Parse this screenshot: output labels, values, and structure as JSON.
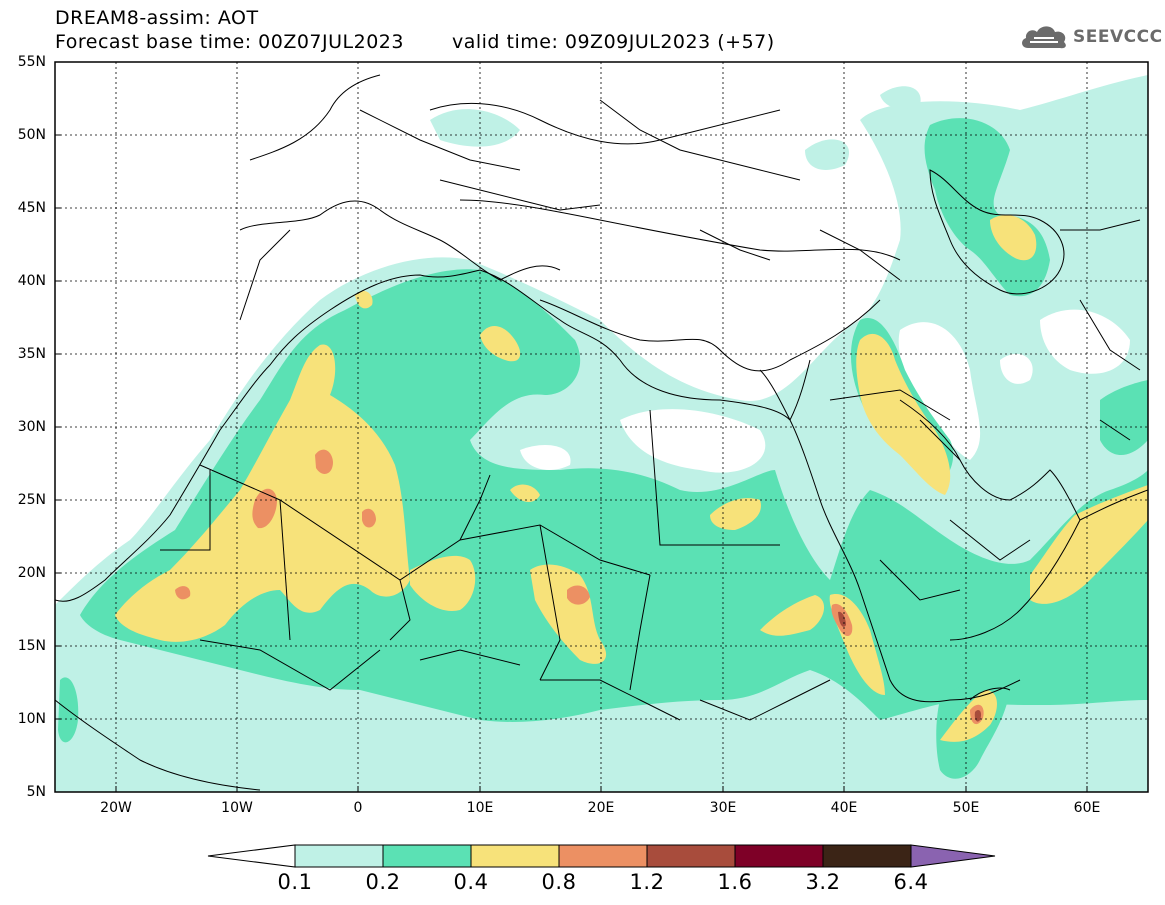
{
  "header": {
    "title_line1": "DREAM8-assim: AOT",
    "base_time_text": "Forecast base time: 00Z07JUL2023",
    "valid_time_text": "valid time: 09Z09JUL2023 (+57)"
  },
  "logo": {
    "text": "SEEVCCC",
    "icon": "cloud-icon"
  },
  "map": {
    "lat_range": [
      5,
      55
    ],
    "lon_range": [
      -25,
      65
    ],
    "lat_labels": [
      "55N",
      "50N",
      "45N",
      "40N",
      "35N",
      "30N",
      "25N",
      "20N",
      "15N",
      "10N",
      "5N"
    ],
    "lon_labels": [
      "20W",
      "10W",
      "0",
      "10E",
      "20E",
      "30E",
      "40E",
      "50E",
      "60E"
    ],
    "lon_values": [
      -20,
      -10,
      0,
      10,
      20,
      30,
      40,
      50,
      60
    ],
    "lat_values": [
      55,
      50,
      45,
      40,
      35,
      30,
      25,
      20,
      15,
      10,
      5
    ]
  },
  "colorbar": {
    "ticks": [
      "0.1",
      "0.2",
      "0.4",
      "0.8",
      "1.2",
      "1.6",
      "3.2",
      "6.4"
    ],
    "colors": [
      "#bff1e6",
      "#5be1b4",
      "#f7e27a",
      "#ec9063",
      "#a84c3c",
      "#7e0027",
      "#3b2416",
      "#8a63b0"
    ],
    "under_color": "#ffffff"
  },
  "aot_colors": {
    "c01": "#bff1e6",
    "c02": "#5be1b4",
    "c04": "#f7e27a",
    "c08": "#ec9063",
    "c12": "#a84c3c"
  }
}
